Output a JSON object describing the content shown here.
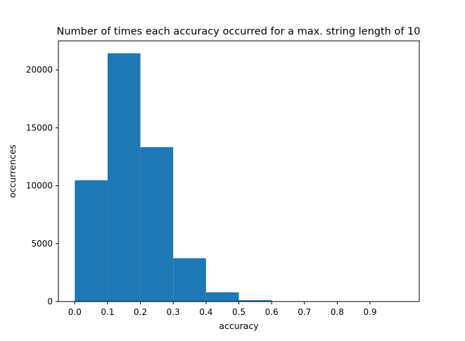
{
  "chart_data": {
    "type": "bar",
    "title": "Number of times each accuracy occurred for a max. string length of 10",
    "xlabel": "accuracy",
    "ylabel": "occurrences",
    "bins": [
      {
        "start": 0.0,
        "end": 0.1,
        "value": 10470
      },
      {
        "start": 0.1,
        "end": 0.2,
        "value": 21430
      },
      {
        "start": 0.2,
        "end": 0.3,
        "value": 13330
      },
      {
        "start": 0.3,
        "end": 0.4,
        "value": 3740
      },
      {
        "start": 0.4,
        "end": 0.5,
        "value": 800
      },
      {
        "start": 0.5,
        "end": 0.6,
        "value": 120
      },
      {
        "start": 0.6,
        "end": 0.7,
        "value": 8
      },
      {
        "start": 0.7,
        "end": 0.8,
        "value": 0
      },
      {
        "start": 0.8,
        "end": 0.9,
        "value": 0
      },
      {
        "start": 0.9,
        "end": 1.0,
        "value": 0
      }
    ],
    "xlim": [
      -0.05,
      1.05
    ],
    "ylim": [
      0,
      22500
    ],
    "xticks": [
      "0.0",
      "0.1",
      "0.2",
      "0.3",
      "0.4",
      "0.5",
      "0.6",
      "0.7",
      "0.8",
      "0.9"
    ],
    "yticks": [
      "0",
      "5000",
      "10000",
      "15000",
      "20000"
    ],
    "grid": false,
    "bar_color": "#1f77b4"
  }
}
